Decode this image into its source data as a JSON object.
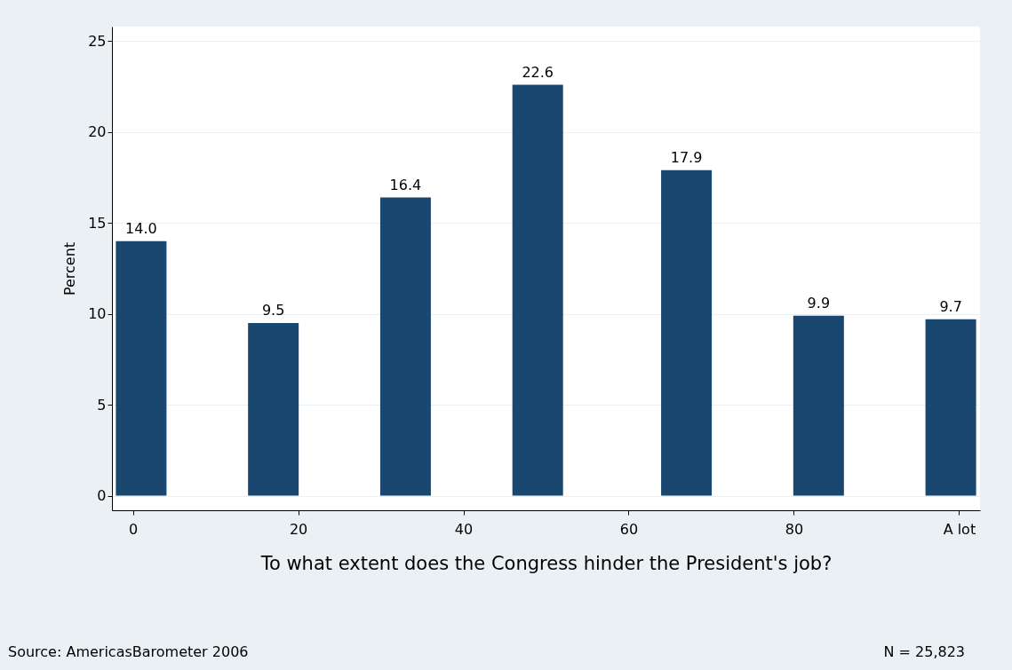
{
  "chart_data": {
    "type": "bar",
    "x": [
      1,
      17,
      33,
      49,
      67,
      83,
      99
    ],
    "values": [
      14.0,
      9.5,
      16.4,
      22.6,
      17.9,
      9.9,
      9.7
    ],
    "color": "#1a476f",
    "xlabel": "To what extent does the Congress hinder the President's job?",
    "ylabel": "Percent",
    "xlim": [
      -2,
      102
    ],
    "xticks": [
      0,
      20,
      40,
      60,
      80,
      {
        "value": 100,
        "label": "A lot"
      }
    ],
    "ylim": [
      -0.8,
      25.8
    ],
    "yticks": [
      0,
      5,
      10,
      15,
      20,
      25
    ],
    "grid": "y",
    "value_labels": [
      "14.0",
      "9.5",
      "16.4",
      "22.6",
      "17.9",
      "9.9",
      "9.7"
    ],
    "annotations": [
      "Source: AmericasBarometer 2006",
      "N =  25,823"
    ]
  }
}
